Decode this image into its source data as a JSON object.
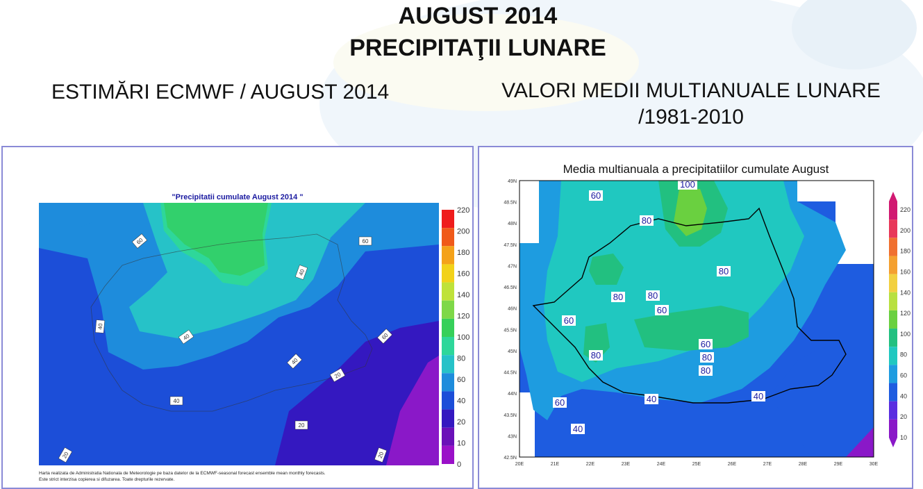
{
  "header": {
    "title_line1": "AUGUST 2014",
    "title_line2": "PRECIPITAŢII LUNARE",
    "left_subtitle": "ESTIMĂRI ECMWF / AUGUST 2014",
    "right_subtitle_line1": "VALORI MEDII MULTIANUALE LUNARE",
    "right_subtitle_line2": "/1981-2010"
  },
  "left_map": {
    "title": "\"Precipitatii cumulate August 2014 \"",
    "colorbar_ticks": [
      "220",
      "200",
      "180",
      "160",
      "140",
      "120",
      "100",
      "80",
      "60",
      "40",
      "20",
      "10",
      "0"
    ],
    "colorbar_colors": [
      "#ef1c1c",
      "#f05a1a",
      "#f4a21a",
      "#f2d21a",
      "#bfe23a",
      "#7ed848",
      "#36d05a",
      "#2ed79a",
      "#26c2c8",
      "#1e8cdc",
      "#1c4ed8",
      "#3418c0",
      "#6a10b8",
      "#9a10c8"
    ],
    "contour_labels": [
      "60",
      "40",
      "60",
      "40",
      "40",
      "40",
      "60",
      "40",
      "20",
      "20",
      "20",
      "20"
    ],
    "footnote_line1": "Harta realizata de Administratia Nationala de Meteorologie pe baza datelor de la ECMWF-seasonal forecast ensemble mean monthly forecasts.",
    "footnote_line2": "Este strict interzisa copierea si difuzarea. Toate drepturile rezervate."
  },
  "right_map": {
    "title": "Media multianuala a precipitatiilor cumulate August",
    "lat_labels": [
      "49N",
      "48.5N",
      "48N",
      "47.5N",
      "47N",
      "46.5N",
      "46N",
      "45.5N",
      "45N",
      "44.5N",
      "44N",
      "43.5N",
      "43N",
      "42.5N"
    ],
    "lon_labels": [
      "20E",
      "21E",
      "22E",
      "23E",
      "24E",
      "25E",
      "26E",
      "27E",
      "28E",
      "29E",
      "30E"
    ],
    "colorbar_ticks": [
      "220",
      "200",
      "180",
      "160",
      "140",
      "120",
      "100",
      "80",
      "60",
      "40",
      "20",
      "10"
    ],
    "colorbar_colors": [
      "#d11a72",
      "#e8385a",
      "#f07030",
      "#f4a030",
      "#f2d040",
      "#b8e040",
      "#6ad040",
      "#22c080",
      "#20c8c0",
      "#1e9ce0",
      "#1e5ce0",
      "#5a2ee0",
      "#8a18c8"
    ],
    "contour_labels": [
      "100",
      "60",
      "80",
      "80",
      "80",
      "60",
      "80",
      "60",
      "80",
      "80",
      "80",
      "60",
      "60",
      "40",
      "40",
      "40"
    ]
  }
}
